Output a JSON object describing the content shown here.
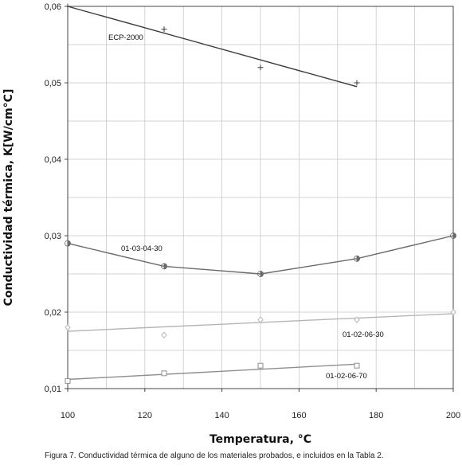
{
  "chart_data": {
    "type": "line",
    "xlabel": "Temperatura, °C",
    "ylabel": "Conductividad térmica, K[W/cm°C]",
    "xlim": [
      100,
      200
    ],
    "ylim": [
      0.01,
      0.06
    ],
    "x_ticks": [
      100,
      120,
      140,
      160,
      180,
      200
    ],
    "x_tick_labels": [
      "100",
      "120",
      "140",
      "160",
      "180",
      "200"
    ],
    "y_ticks": [
      0.01,
      0.02,
      0.03,
      0.04,
      0.05,
      0.06
    ],
    "y_tick_labels": [
      "0,01",
      "0,02",
      "0,03",
      "0,04",
      "0,05",
      "0,06"
    ],
    "grid": true,
    "series": [
      {
        "name": "ECP-2000",
        "color": "#3a3a3a",
        "marker": "plus",
        "points": [
          [
            100,
            0.06
          ],
          [
            125,
            0.057
          ],
          [
            150,
            0.052
          ],
          [
            175,
            0.05
          ]
        ],
        "fit": [
          [
            100,
            0.06
          ],
          [
            175,
            0.0495
          ]
        ]
      },
      {
        "name": "01-03-04-30",
        "color": "#6a6a6a",
        "marker": "halfcircle",
        "points": [
          [
            100,
            0.029
          ],
          [
            125,
            0.026
          ],
          [
            150,
            0.025
          ],
          [
            175,
            0.027
          ],
          [
            200,
            0.03
          ]
        ],
        "fit": [
          [
            100,
            0.029
          ],
          [
            125,
            0.026
          ],
          [
            150,
            0.025
          ],
          [
            175,
            0.027
          ],
          [
            200,
            0.03
          ]
        ]
      },
      {
        "name": "01-02-06-30",
        "color": "#b5b5b5",
        "marker": "diamond",
        "points": [
          [
            100,
            0.018
          ],
          [
            125,
            0.017
          ],
          [
            150,
            0.019
          ],
          [
            175,
            0.019
          ],
          [
            200,
            0.02
          ]
        ],
        "fit": [
          [
            100,
            0.0175
          ],
          [
            200,
            0.0198
          ]
        ]
      },
      {
        "name": "01-02-06-70",
        "color": "#8e8e8e",
        "marker": "square",
        "points": [
          [
            100,
            0.011
          ],
          [
            125,
            0.012
          ],
          [
            150,
            0.013
          ],
          [
            175,
            0.013
          ]
        ],
        "fit": [
          [
            100,
            0.0112
          ],
          [
            175,
            0.0132
          ]
        ]
      }
    ]
  },
  "caption": "Figura 7. Conductividad térmica de alguno de los materiales probados, e incluidos en la Tabla 2."
}
